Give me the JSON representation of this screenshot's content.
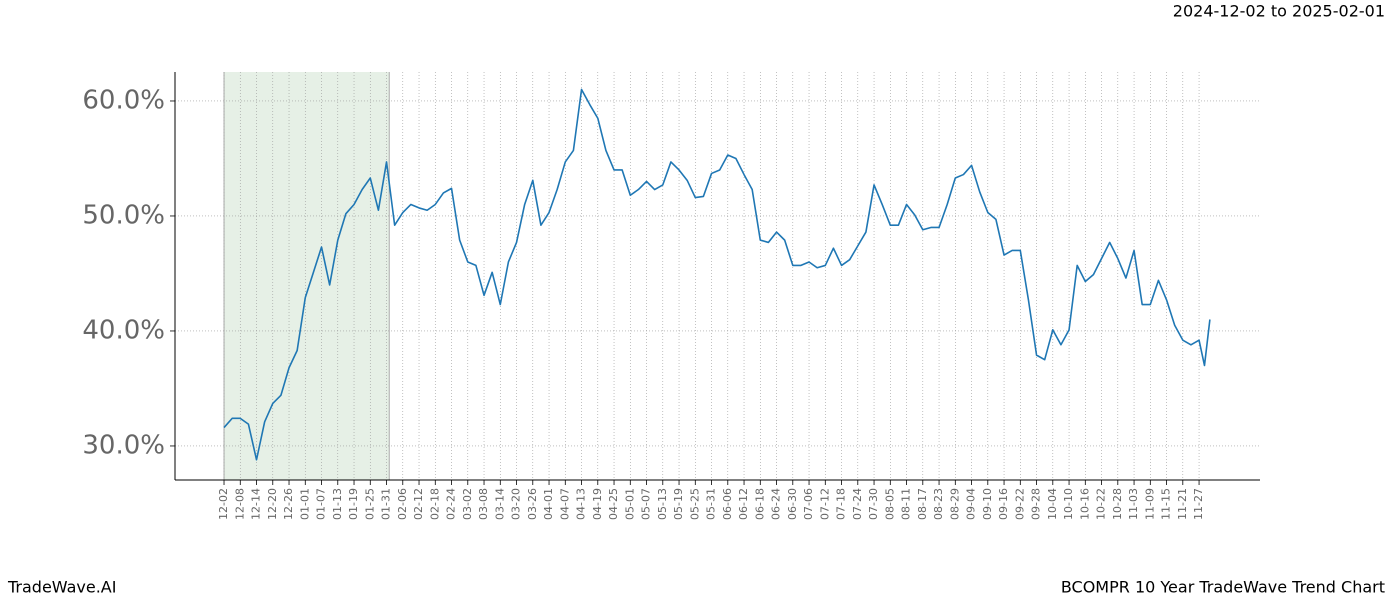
{
  "chart_data": {
    "type": "line",
    "date_range": "2024-12-02 to 2025-02-01",
    "brand": "TradeWave.AI",
    "title": "BCOMPR 10 Year TradeWave Trend Chart",
    "color": "#1f77b4",
    "shade_range": [
      0,
      61
    ],
    "shade_color": "#e6f0e6",
    "grid": true,
    "xlim": [
      -18.1,
      382.5
    ],
    "ylim": [
      27.04,
      62.52
    ],
    "yticks": [
      {
        "value": 30,
        "label": "30.0%"
      },
      {
        "value": 40,
        "label": "40.0%"
      },
      {
        "value": 50,
        "label": "50.0%"
      },
      {
        "value": 60,
        "label": "60.0%"
      }
    ],
    "xticks": [
      {
        "value": 0,
        "label": "12-02"
      },
      {
        "value": 6,
        "label": "12-08"
      },
      {
        "value": 12,
        "label": "12-14"
      },
      {
        "value": 18,
        "label": "12-20"
      },
      {
        "value": 24,
        "label": "12-26"
      },
      {
        "value": 30,
        "label": "01-01"
      },
      {
        "value": 36,
        "label": "01-07"
      },
      {
        "value": 42,
        "label": "01-13"
      },
      {
        "value": 48,
        "label": "01-19"
      },
      {
        "value": 54,
        "label": "01-25"
      },
      {
        "value": 60,
        "label": "01-31"
      },
      {
        "value": 66,
        "label": "02-06"
      },
      {
        "value": 72,
        "label": "02-12"
      },
      {
        "value": 78,
        "label": "02-18"
      },
      {
        "value": 84,
        "label": "02-24"
      },
      {
        "value": 90,
        "label": "03-02"
      },
      {
        "value": 96,
        "label": "03-08"
      },
      {
        "value": 102,
        "label": "03-14"
      },
      {
        "value": 108,
        "label": "03-20"
      },
      {
        "value": 114,
        "label": "03-26"
      },
      {
        "value": 120,
        "label": "04-01"
      },
      {
        "value": 126,
        "label": "04-07"
      },
      {
        "value": 132,
        "label": "04-13"
      },
      {
        "value": 138,
        "label": "04-19"
      },
      {
        "value": 144,
        "label": "04-25"
      },
      {
        "value": 150,
        "label": "05-01"
      },
      {
        "value": 156,
        "label": "05-07"
      },
      {
        "value": 162,
        "label": "05-13"
      },
      {
        "value": 168,
        "label": "05-19"
      },
      {
        "value": 174,
        "label": "05-25"
      },
      {
        "value": 180,
        "label": "05-31"
      },
      {
        "value": 186,
        "label": "06-06"
      },
      {
        "value": 192,
        "label": "06-12"
      },
      {
        "value": 198,
        "label": "06-18"
      },
      {
        "value": 204,
        "label": "06-24"
      },
      {
        "value": 210,
        "label": "06-30"
      },
      {
        "value": 216,
        "label": "07-06"
      },
      {
        "value": 222,
        "label": "07-12"
      },
      {
        "value": 228,
        "label": "07-18"
      },
      {
        "value": 234,
        "label": "07-24"
      },
      {
        "value": 240,
        "label": "07-30"
      },
      {
        "value": 246,
        "label": "08-05"
      },
      {
        "value": 252,
        "label": "08-11"
      },
      {
        "value": 258,
        "label": "08-17"
      },
      {
        "value": 264,
        "label": "08-23"
      },
      {
        "value": 270,
        "label": "08-29"
      },
      {
        "value": 276,
        "label": "09-04"
      },
      {
        "value": 282,
        "label": "09-10"
      },
      {
        "value": 288,
        "label": "09-16"
      },
      {
        "value": 294,
        "label": "09-22"
      },
      {
        "value": 300,
        "label": "09-28"
      },
      {
        "value": 306,
        "label": "10-04"
      },
      {
        "value": 312,
        "label": "10-10"
      },
      {
        "value": 318,
        "label": "10-16"
      },
      {
        "value": 324,
        "label": "10-22"
      },
      {
        "value": 330,
        "label": "10-28"
      },
      {
        "value": 336,
        "label": "11-03"
      },
      {
        "value": 342,
        "label": "11-09"
      },
      {
        "value": 348,
        "label": "11-15"
      },
      {
        "value": 354,
        "label": "11-21"
      },
      {
        "value": 360,
        "label": "11-27"
      }
    ],
    "x": [
      0,
      3,
      6,
      9,
      12,
      15,
      18,
      21,
      24,
      27,
      30,
      33,
      36,
      39,
      42,
      45,
      48,
      51,
      54,
      57,
      60,
      63,
      66,
      69,
      72,
      75,
      78,
      81,
      84,
      87,
      90,
      93,
      96,
      99,
      102,
      105,
      108,
      111,
      114,
      117,
      120,
      123,
      126,
      129,
      132,
      135,
      138,
      141,
      144,
      147,
      150,
      153,
      156,
      159,
      162,
      165,
      168,
      171,
      174,
      177,
      180,
      183,
      186,
      189,
      192,
      195,
      198,
      201,
      204,
      207,
      210,
      213,
      216,
      219,
      222,
      225,
      228,
      231,
      234,
      237,
      240,
      243,
      246,
      249,
      252,
      255,
      258,
      261,
      264,
      267,
      270,
      273,
      276,
      279,
      282,
      285,
      288,
      291,
      294,
      297,
      300,
      303,
      306,
      309,
      312,
      315,
      318,
      321,
      324,
      327,
      330,
      333,
      336,
      339,
      342,
      345,
      348,
      351,
      354,
      357,
      360,
      362,
      364
    ],
    "values": [
      31.6,
      32.4,
      32.4,
      31.9,
      28.8,
      32.1,
      33.7,
      34.4,
      36.8,
      38.3,
      42.9,
      45.1,
      47.3,
      44.0,
      47.9,
      50.2,
      51.0,
      52.3,
      53.3,
      50.5,
      54.7,
      49.2,
      50.3,
      51.0,
      50.7,
      50.5,
      51.0,
      52.0,
      52.4,
      47.9,
      46.0,
      45.7,
      43.1,
      45.1,
      42.3,
      46.0,
      47.7,
      51.0,
      53.1,
      49.2,
      50.3,
      52.3,
      54.7,
      55.7,
      61.0,
      59.7,
      58.5,
      55.7,
      54.0,
      54.0,
      51.8,
      52.3,
      53.0,
      52.3,
      52.7,
      54.7,
      54.0,
      53.1,
      51.6,
      51.7,
      53.7,
      54.0,
      55.3,
      55.0,
      53.6,
      52.3,
      47.9,
      47.7,
      48.6,
      47.9,
      45.7,
      45.7,
      46.0,
      45.5,
      45.7,
      47.2,
      45.7,
      46.2,
      47.4,
      48.6,
      52.7,
      51.0,
      49.2,
      49.2,
      51.0,
      50.1,
      48.8,
      49.0,
      49.0,
      51.0,
      53.3,
      53.6,
      54.4,
      52.1,
      50.3,
      49.7,
      46.6,
      47.0,
      47.0,
      42.7,
      37.9,
      37.5,
      40.1,
      38.8,
      40.1,
      45.7,
      44.3,
      44.9,
      46.3,
      47.7,
      46.3,
      44.6,
      47.0,
      42.3,
      42.3,
      44.4,
      42.7,
      40.5,
      39.2,
      38.8,
      39.2,
      37.0,
      41.0
    ]
  }
}
